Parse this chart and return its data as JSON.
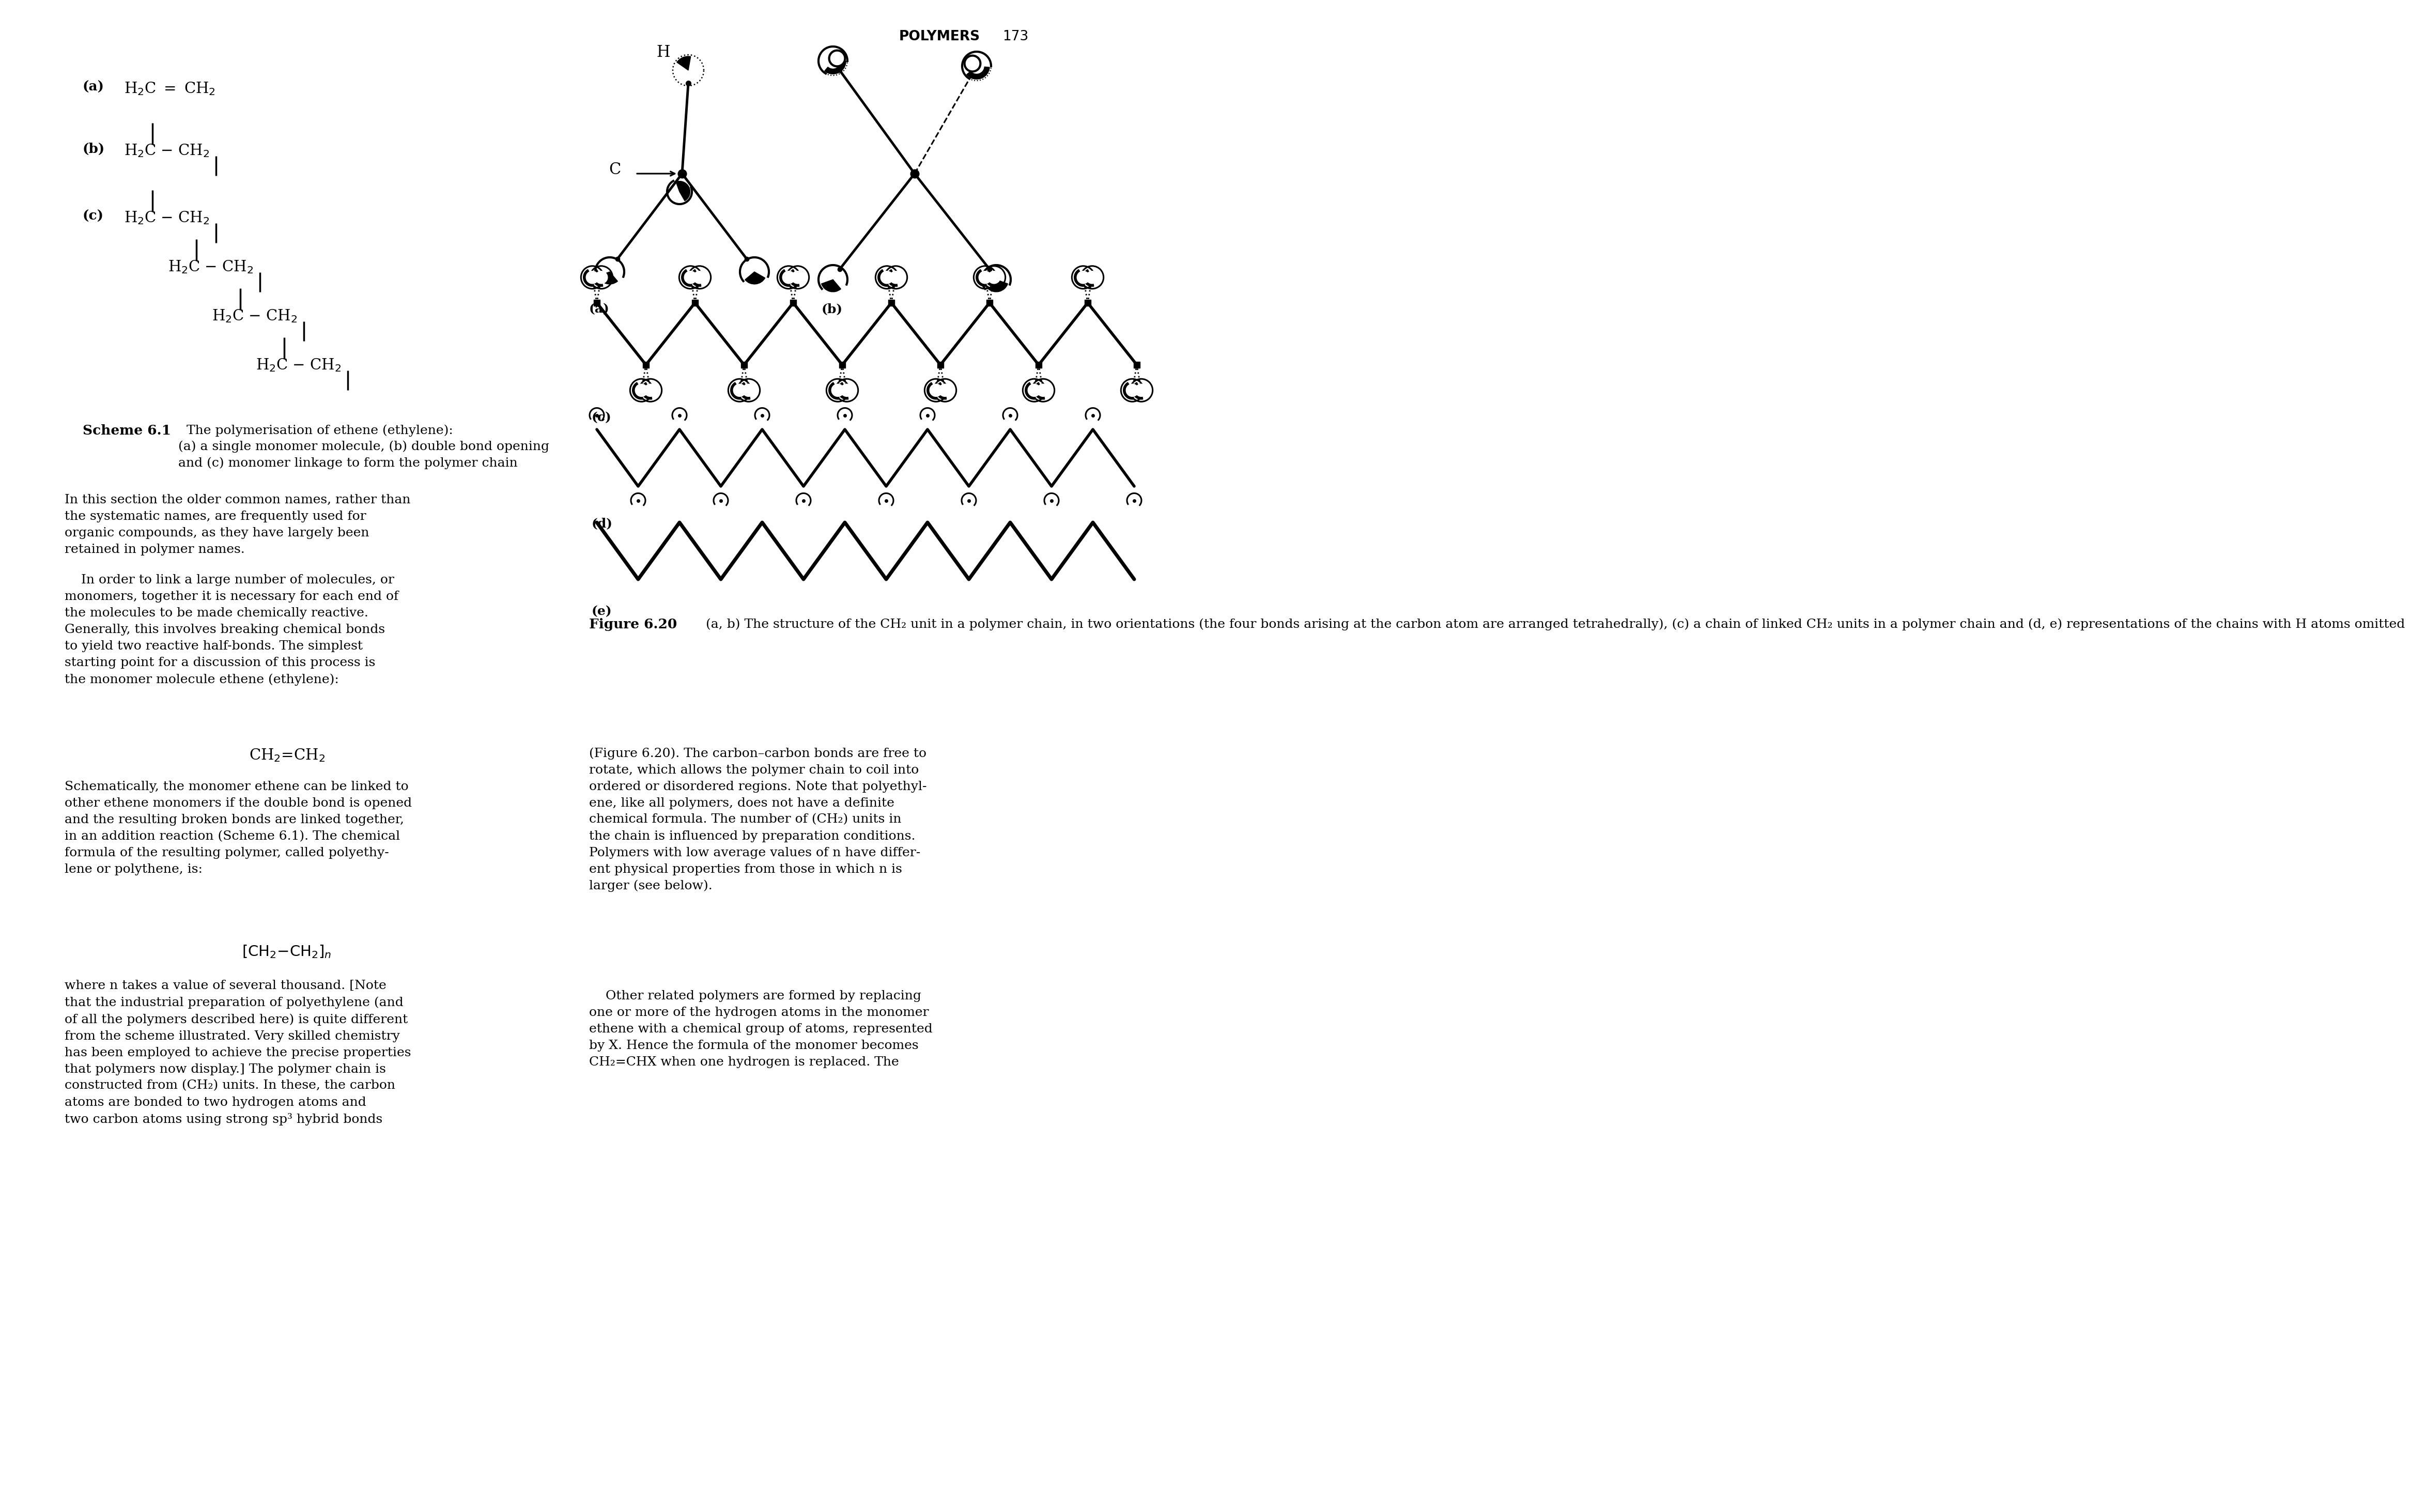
{
  "page_header": "POLYMERS",
  "page_number": "173",
  "bg": "#ffffff",
  "scheme_a_label": "(a)",
  "scheme_a_formula": "H₂C ═ CH₂",
  "scheme_b_label": "(b)",
  "scheme_b_formula": "H₂C — CH₂",
  "scheme_c_label": "(c)",
  "scheme_caption_bold": "Scheme 6.1",
  "scheme_caption_rest": "  The polymerisation of ethene (ethylene):\n(a) a single monomer molecule, (b) double bond opening\nand (c) monomer linkage to form the polymer chain",
  "fig_a_label": "(a)",
  "fig_b_label": "(b)",
  "fig_c_label": "(c)",
  "fig_d_label": "(d)",
  "fig_e_label": "(e)",
  "fig_caption_bold": "Figure 6.20",
  "fig_caption_rest": "  (a, b) The structure of the CH₂ unit in a polymer chain, in two orientations (the four bonds arising at the carbon atom are arranged tetrahedrally), (c) a chain of linked CH₂ units in a polymer chain and (d, e) representations of the chains with H atoms omitted",
  "left_body_p1": "In this section the older common names, rather than\nthe systematic names, are frequently used for\norganic compounds, as they have largely been\nretained in polymer names.",
  "left_body_p2": "    In order to link a large number of molecules, or\nmonomers, together it is necessary for each end of\nthe molecules to be made chemically reactive.\nGenerally, this involves breaking chemical bonds\nto yield two reactive half-bonds. The simplest\nstarting point for a discussion of this process is\nthe monomer molecule ethene (ethylene):",
  "left_formula1": "CH₂=CH₂",
  "left_body_p3": "Schematically, the monomer ethene can be linked to\nother ethene monomers if the double bond is opened\nand the resulting broken bonds are linked together,\nin an addition reaction (Scheme 6.1). The chemical\nformula of the resulting polymer, called polyethy-\nlene or polythene, is:",
  "left_formula2": "[CH₂–CH₂]ₙ",
  "left_body_p4": "where n takes a value of several thousand. [Note\nthat the industrial preparation of polyethylene (and\nof all the polymers described here) is quite different\nfrom the scheme illustrated. Very skilled chemistry\nhas been employed to achieve the precise properties\nthat polymers now display.] The polymer chain is\nconstructed from (CH₂) units. In these, the carbon\natoms are bonded to two hydrogen atoms and\ntwo carbon atoms using strong sp³ hybrid bonds",
  "right_body_p1": "(Figure 6.20). The carbon–carbon bonds are free to\nrotate, which allows the polymer chain to coil into\nordered or disordered regions. Note that polyethyl-\nene, like all polymers, does not have a definite\nchemical formula. The number of (CH₂) units in\nthe chain is influenced by preparation conditions.\nPolymers with low average values of n have differ-\nent physical properties from those in which n is\nlarger (see below).",
  "right_body_p2": "    Other related polymers are formed by replacing\none or more of the hydrogen atoms in the monomer\nethene with a chemical group of atoms, represented\nby X. Hence the formula of the monomer becomes\nCH₂=CHX when one hydrogen is replaced. The"
}
